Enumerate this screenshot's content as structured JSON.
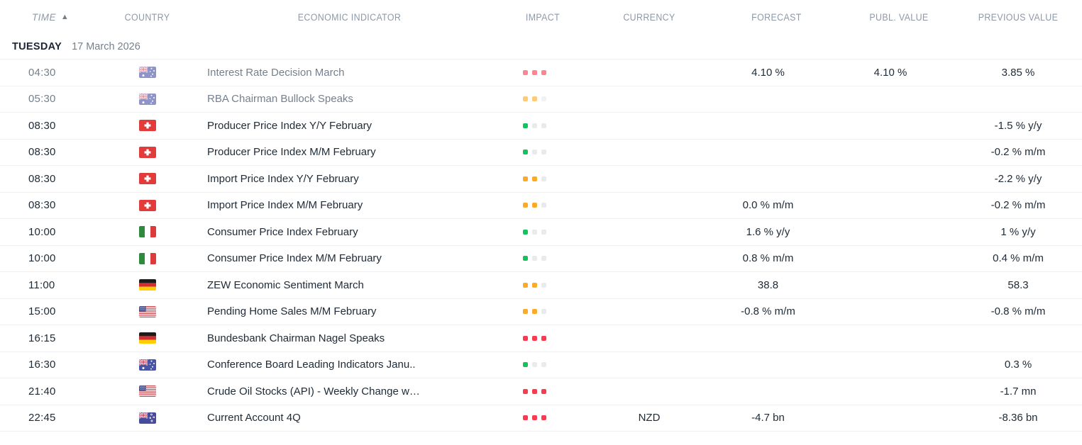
{
  "table": {
    "columns": [
      {
        "label": "TIME"
      },
      {
        "label": "COUNTRY"
      },
      {
        "label": "ECONOMIC INDICATOR"
      },
      {
        "label": "IMPACT"
      },
      {
        "label": "CURRENCY"
      },
      {
        "label": "FORECAST"
      },
      {
        "label": "PUBL. VALUE"
      },
      {
        "label": "PREVIOUS VALUE"
      }
    ],
    "sort_indicator": "▲"
  },
  "date_header": {
    "weekday": "TUESDAY",
    "date": "17 March 2026"
  },
  "colors": {
    "impact_high": "#fb3a50",
    "impact_medium": "#fbab27",
    "impact_low": "#14c35e",
    "impact_inactive": "#e8eaec",
    "text_dark": "#202c38",
    "text_muted": "#75808d",
    "header_text": "#8e99a8"
  },
  "rows": [
    {
      "time": "04:30",
      "country": "australia",
      "indicator": "Interest Rate Decision March",
      "impact_level": 3,
      "currency": "",
      "forecast": "4.10 %",
      "publ_value": "4.10 %",
      "previous_value": "3.85 %",
      "muted": true
    },
    {
      "time": "05:30",
      "country": "australia",
      "indicator": "RBA Chairman Bullock Speaks",
      "impact_level": 2,
      "currency": "",
      "forecast": "",
      "publ_value": "",
      "previous_value": "",
      "muted": true
    },
    {
      "time": "08:30",
      "country": "switzerland",
      "indicator": "Producer Price Index Y/Y February",
      "impact_level": 1,
      "currency": "",
      "forecast": "",
      "publ_value": "",
      "previous_value": "-1.5 % y/y",
      "muted": false
    },
    {
      "time": "08:30",
      "country": "switzerland",
      "indicator": "Producer Price Index M/M February",
      "impact_level": 1,
      "currency": "",
      "forecast": "",
      "publ_value": "",
      "previous_value": "-0.2 % m/m",
      "muted": false
    },
    {
      "time": "08:30",
      "country": "switzerland",
      "indicator": "Import Price Index Y/Y February",
      "impact_level": 2,
      "currency": "",
      "forecast": "",
      "publ_value": "",
      "previous_value": "-2.2 % y/y",
      "muted": false
    },
    {
      "time": "08:30",
      "country": "switzerland",
      "indicator": "Import Price Index M/M February",
      "impact_level": 2,
      "currency": "",
      "forecast": "0.0 % m/m",
      "publ_value": "",
      "previous_value": "-0.2 % m/m",
      "muted": false
    },
    {
      "time": "10:00",
      "country": "italy",
      "indicator": "Consumer Price Index February",
      "impact_level": 1,
      "currency": "",
      "forecast": "1.6 % y/y",
      "publ_value": "",
      "previous_value": "1 % y/y",
      "muted": false
    },
    {
      "time": "10:00",
      "country": "italy",
      "indicator": "Consumer Price Index M/M February",
      "impact_level": 1,
      "currency": "",
      "forecast": "0.8 % m/m",
      "publ_value": "",
      "previous_value": "0.4 % m/m",
      "muted": false
    },
    {
      "time": "11:00",
      "country": "germany",
      "indicator": "ZEW Economic Sentiment March",
      "impact_level": 2,
      "currency": "",
      "forecast": "38.8",
      "publ_value": "",
      "previous_value": "58.3",
      "muted": false
    },
    {
      "time": "15:00",
      "country": "usa",
      "indicator": "Pending Home Sales M/M February",
      "impact_level": 2,
      "currency": "",
      "forecast": "-0.8 % m/m",
      "publ_value": "",
      "previous_value": "-0.8 % m/m",
      "muted": false
    },
    {
      "time": "16:15",
      "country": "germany",
      "indicator": "Bundesbank Chairman Nagel Speaks",
      "impact_level": 3,
      "currency": "",
      "forecast": "",
      "publ_value": "",
      "previous_value": "",
      "muted": false
    },
    {
      "time": "16:30",
      "country": "australia",
      "indicator": "Conference Board Leading Indicators Janu..",
      "impact_level": 1,
      "currency": "",
      "forecast": "",
      "publ_value": "",
      "previous_value": "0.3 %",
      "muted": false
    },
    {
      "time": "21:40",
      "country": "usa",
      "indicator": "Crude Oil Stocks (API) - Weekly Change w…",
      "impact_level": 3,
      "currency": "",
      "forecast": "",
      "publ_value": "",
      "previous_value": "-1.7 mn",
      "muted": false
    },
    {
      "time": "22:45",
      "country": "new-zealand",
      "indicator": "Current Account 4Q",
      "impact_level": 3,
      "currency": "NZD",
      "forecast": "-4.7 bn",
      "publ_value": "",
      "previous_value": "-8.36 bn",
      "muted": false
    }
  ]
}
